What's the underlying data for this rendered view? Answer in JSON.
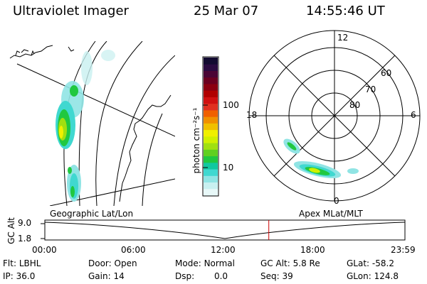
{
  "header": {
    "instrument": "Ultraviolet Imager",
    "date": "25 Mar 07",
    "time": "14:55:46 UT"
  },
  "colorbar": {
    "label": "photon cm⁻²s⁻¹",
    "ticks": [
      "100",
      "10"
    ],
    "colors": [
      "#120a30",
      "#2a0a40",
      "#4a0535",
      "#6b0020",
      "#8b0010",
      "#b00000",
      "#d01010",
      "#e03020",
      "#f06000",
      "#f09000",
      "#f0c000",
      "#f0f000",
      "#d0f000",
      "#a0e010",
      "#60d020",
      "#20c840",
      "#10c8a0",
      "#40d8d0",
      "#90e4e4",
      "#c8f0f0",
      "#e8f8f8"
    ]
  },
  "geo_panel": {
    "label": "Geographic Lat/Lon"
  },
  "polar_panel": {
    "label": "Apex MLat/MLT",
    "mlt_labels": [
      "12",
      "18",
      "6",
      "0"
    ],
    "lat_labels": [
      "60",
      "70",
      "80"
    ]
  },
  "timeline": {
    "y_axis_label": "GC Alt",
    "y_ticks": [
      "9.0",
      "1.8"
    ],
    "x_ticks": [
      "00:00",
      "06:00",
      "12:00",
      "18:00",
      "23:59"
    ],
    "marker_time": "14:55",
    "marker_color": "#cc0000"
  },
  "status": {
    "flt_label": "Flt:",
    "flt_value": "LBHL",
    "ip_label": "IP:",
    "ip_value": "36.0",
    "door_label": "Door:",
    "door_value": "Open",
    "gain_label": "Gain:",
    "gain_value": "14",
    "mode_label": "Mode:",
    "mode_value": "Normal",
    "dsp_label": "Dsp:",
    "dsp_value": "0.0",
    "gcalt_label": "GC Alt:",
    "gcalt_value": "5.8 Re",
    "seq_label": "Seq:",
    "seq_value": "39",
    "glat_label": "GLat:",
    "glat_value": "-58.2",
    "glon_label": "GLon:",
    "glon_value": "124.8"
  }
}
